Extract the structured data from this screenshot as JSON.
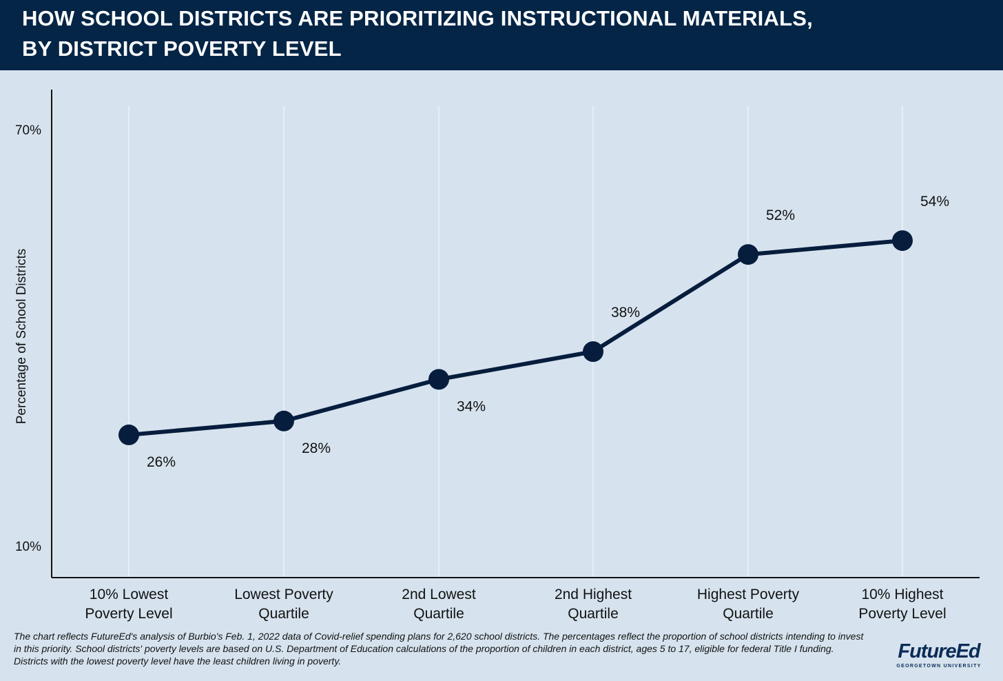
{
  "header": {
    "title_line_1": "HOW SCHOOL DISTRICTS ARE PRIORITIZING INSTRUCTIONAL MATERIALS,",
    "title_line_2": "BY DISTRICT POVERTY LEVEL"
  },
  "chart_data": {
    "type": "line",
    "title": "HOW SCHOOL DISTRICTS ARE PRIORITIZING INSTRUCTIONAL MATERIALS, BY DISTRICT POVERTY LEVEL",
    "ylabel": "Percentage of School Districts",
    "xlabel": "",
    "ylim": [
      10,
      70
    ],
    "y_ticks": [
      "10%",
      "70%"
    ],
    "categories": [
      [
        "10% Lowest",
        "Poverty Level"
      ],
      [
        "Lowest Poverty",
        "Quartile"
      ],
      [
        "2nd Lowest",
        "Quartile"
      ],
      [
        "2nd Highest",
        "Quartile"
      ],
      [
        "Highest Poverty",
        "Quartile"
      ],
      [
        "10% Highest",
        "Poverty Level"
      ]
    ],
    "values": [
      26,
      28,
      34,
      38,
      52,
      54
    ],
    "data_labels": [
      "26%",
      "28%",
      "34%",
      "38%",
      "52%",
      "54%"
    ],
    "grid": "vertical",
    "legend": "none"
  },
  "footnote": "The chart reflects FutureEd's analysis of Burbio's Feb. 1, 2022 data of Covid-relief spending plans for 2,620 school districts. The percentages reflect the proportion of school districts intending to invest in this priority. School districts' poverty levels are based on U.S. Department of Education calculations of the proportion of children in each district, ages 5 to 17, eligible for federal Title I funding. Districts with the lowest poverty level have the least children living in poverty.",
  "logo": {
    "name": "FutureEd",
    "subtitle": "GEORGETOWN UNIVERSITY"
  },
  "colors": {
    "header_bg": "#042546",
    "background": "#d6e3ee",
    "line": "#071d3d",
    "gridline": "#f2f6fa",
    "text": "#111111"
  }
}
